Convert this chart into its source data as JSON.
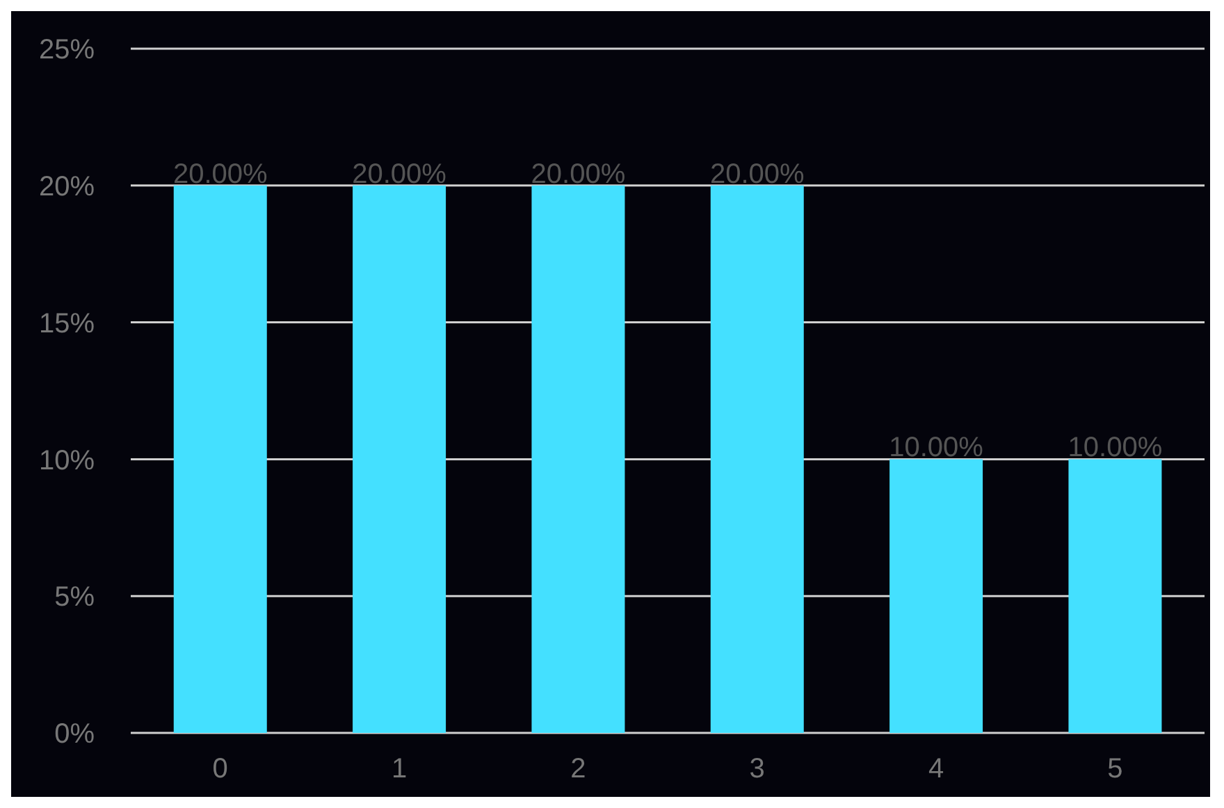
{
  "chart_data": {
    "type": "bar",
    "categories": [
      "0",
      "1",
      "2",
      "3",
      "4",
      "5"
    ],
    "values": [
      20,
      20,
      20,
      20,
      10,
      10
    ],
    "value_labels": [
      "20.00%",
      "20.00%",
      "20.00%",
      "20.00%",
      "10.00%",
      "10.00%"
    ],
    "color": "#44e0ff",
    "ylim": [
      0,
      25
    ],
    "yticks": [
      {
        "value": 0,
        "label": "0%"
      },
      {
        "value": 5,
        "label": "5%"
      },
      {
        "value": 10,
        "label": "10%"
      },
      {
        "value": 15,
        "label": "15%"
      },
      {
        "value": 20,
        "label": "20%"
      },
      {
        "value": 25,
        "label": "25%"
      }
    ],
    "grid": "y"
  }
}
